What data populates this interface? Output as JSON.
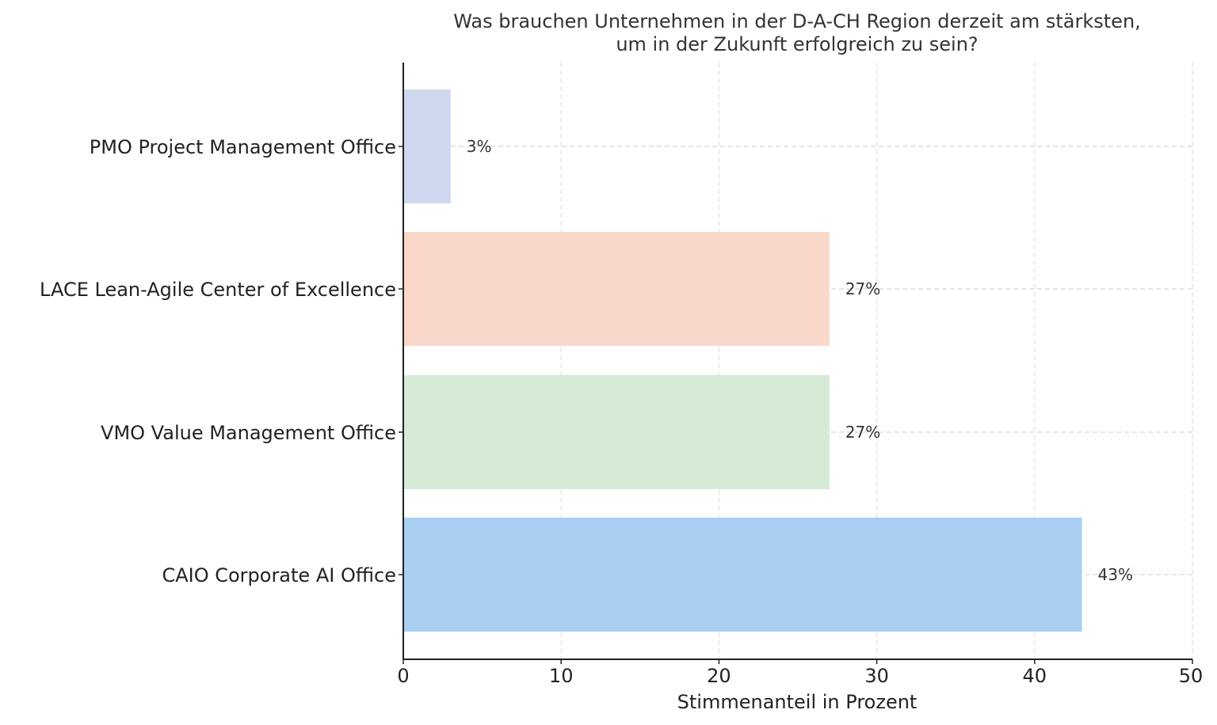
{
  "chart_data": {
    "type": "bar",
    "orientation": "horizontal",
    "title_lines": [
      "Was brauchen Unternehmen in der D-A-CH Region derzeit am stärksten,",
      "um in der Zukunft erfolgreich zu sein?"
    ],
    "xlabel": "Stimmenanteil in Prozent",
    "ylabel": "",
    "xlim": [
      0,
      50
    ],
    "xticks": [
      "0",
      "10",
      "20",
      "30",
      "40",
      "50"
    ],
    "grid": true,
    "categories": [
      "PMO Project Management Office",
      "LACE Lean-Agile Center of Excellence",
      "VMO Value Management Office",
      "CAIO Corporate AI Office"
    ],
    "values": [
      3,
      27,
      27,
      43
    ],
    "value_labels": [
      "3%",
      "27%",
      "27%",
      "43%"
    ],
    "colors": [
      "#d0d8ef",
      "#fad8c9",
      "#d4ead5",
      "#a9cff3"
    ]
  }
}
